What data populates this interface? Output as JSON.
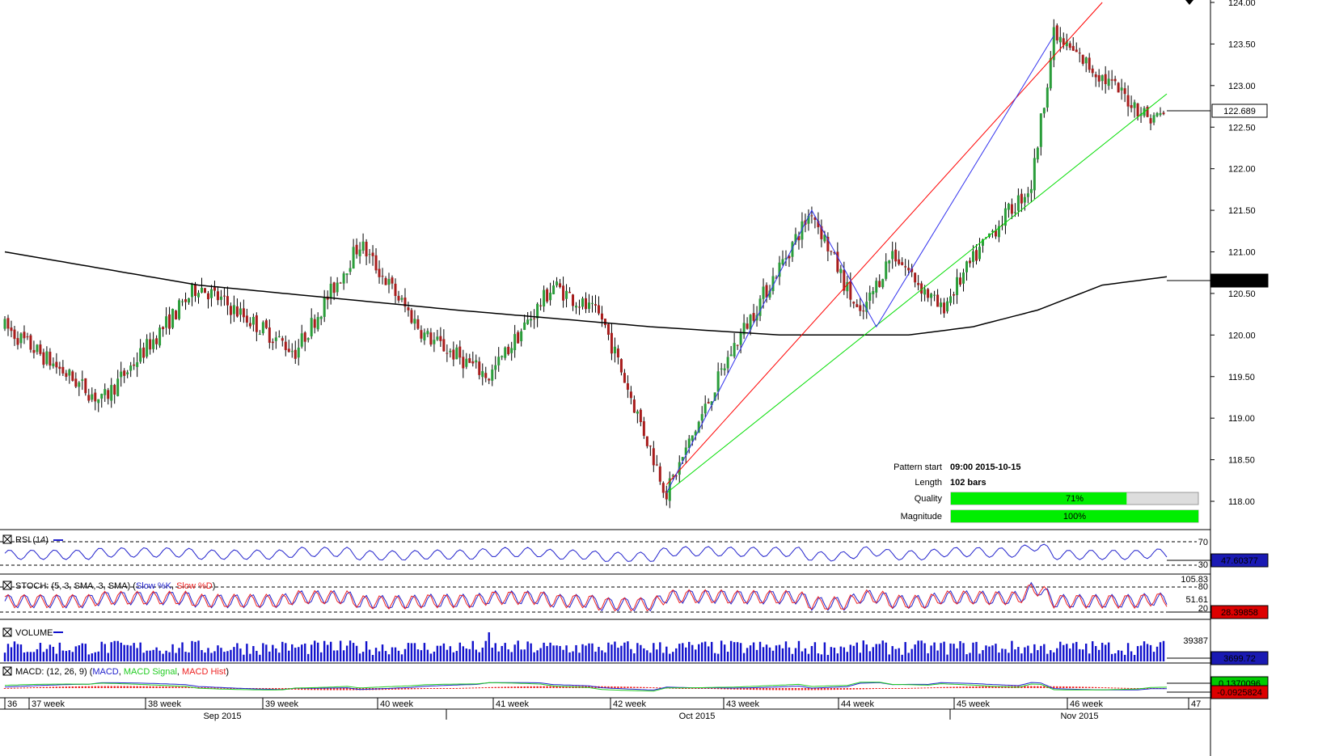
{
  "colors": {
    "bull": "#2a9d3a",
    "bear": "#a81c1c",
    "wick": "#000000",
    "ma": "#000000",
    "upper_line": "#ff0000",
    "lower_line": "#00dd00",
    "zigzag": "#3333ee",
    "rsi": "#2222cc",
    "stoch_k": "#2222cc",
    "stoch_d": "#ee2222",
    "volume": "#1111cc",
    "macd": "#2222cc",
    "macd_signal": "#22cc22",
    "macd_hist": "#ee2222",
    "quality_fill": "#00ee00",
    "label_bg_dark": "#000000",
    "label_bg_red": "#dd0000",
    "label_bg_blue": "#1a1ab3",
    "label_bg_green": "#00cc00"
  },
  "chart_data": {
    "type": "candlestick",
    "instrument_scale": {
      "ymin": 118.0,
      "ymax": 124.0
    },
    "y_ticks": [
      "124.00",
      "123.50",
      "123.00",
      "122.50",
      "122.00",
      "121.50",
      "121.00",
      "120.50",
      "120.00",
      "119.50",
      "119.00",
      "118.50",
      "118.00"
    ],
    "current_price_label": "122.689",
    "ma_label": "120.659",
    "ma_points": [
      [
        0,
        121.0
      ],
      [
        60,
        120.6
      ],
      [
        140,
        120.3
      ],
      [
        200,
        120.1
      ],
      [
        240,
        120.0
      ],
      [
        280,
        120.0
      ],
      [
        300,
        120.1
      ],
      [
        320,
        120.3
      ],
      [
        340,
        120.6
      ],
      [
        360,
        120.7
      ]
    ],
    "candles_count": 360,
    "key_points": [
      [
        0,
        120.1
      ],
      [
        30,
        119.2
      ],
      [
        60,
        120.6
      ],
      [
        90,
        119.8
      ],
      [
        110,
        121.1
      ],
      [
        130,
        120.0
      ],
      [
        150,
        119.5
      ],
      [
        170,
        120.6
      ],
      [
        185,
        120.2
      ],
      [
        205,
        118.1
      ],
      [
        225,
        119.8
      ],
      [
        250,
        121.5
      ],
      [
        265,
        120.2
      ],
      [
        275,
        121.0
      ],
      [
        290,
        120.3
      ],
      [
        305,
        121.2
      ],
      [
        318,
        121.8
      ],
      [
        325,
        123.6
      ],
      [
        340,
        123.1
      ],
      [
        355,
        122.6
      ],
      [
        360,
        122.69
      ]
    ],
    "pattern": {
      "upper_line": [
        [
          205,
          118.2
        ],
        [
          340,
          124.0
        ]
      ],
      "lower_line": [
        [
          205,
          118.1
        ],
        [
          360,
          122.9
        ]
      ],
      "zigzag": [
        [
          205,
          118.1
        ],
        [
          250,
          121.5
        ],
        [
          270,
          120.1
        ],
        [
          325,
          123.6
        ]
      ]
    },
    "x_week_labels": [
      "36",
      "37 week",
      "38 week",
      "39 week",
      "40 week",
      "41 week",
      "42 week",
      "43 week",
      "44 week",
      "45 week",
      "46 week",
      "47"
    ],
    "x_month_labels": [
      "Sep 2015",
      "Oct 2015",
      "Nov 2015"
    ]
  },
  "pattern_info": {
    "start_label": "Pattern start",
    "start_value": "09:00 2015-10-15",
    "length_label": "Length",
    "length_value": "102 bars",
    "quality_label": "Quality",
    "quality_value": "71%",
    "quality_pct": 0.71,
    "magnitude_label": "Magnitude",
    "magnitude_value": "100%",
    "magnitude_pct": 1.0
  },
  "indicators": {
    "rsi": {
      "title": "RSI (14)",
      "level_high": "70",
      "level_low": "30",
      "value_label": "47.60377"
    },
    "stoch": {
      "title_prefix": "STOCH: (5, 3, SMA, 3, SMA) (",
      "k_label": "Slow %K",
      "sep": ", ",
      "d_label": "Slow %D",
      "title_suffix": ")",
      "top_label": "105.83",
      "level_high": "80",
      "mid_label": "51.61",
      "level_low": "20",
      "value_label": "28.39858"
    },
    "volume": {
      "title": "VOLUME",
      "top_label": "39387",
      "value_label": "3699.72"
    },
    "macd": {
      "title_prefix": "MACD: (12, 26, 9) (",
      "macd_label": "MACD",
      "sep": ", ",
      "signal_label": "MACD Signal",
      "hist_label": "MACD Hist",
      "title_suffix": ")",
      "value_label_top": "0.1370096",
      "value_label": "-0.0925824"
    }
  }
}
